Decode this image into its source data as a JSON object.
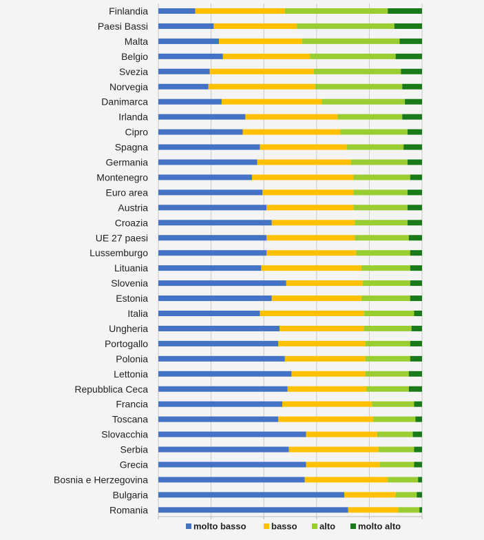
{
  "chart_data": {
    "type": "bar",
    "orientation": "horizontal",
    "stacked": true,
    "normalized": true,
    "categories": [
      "Finlandia",
      "Paesi Bassi",
      "Malta",
      "Belgio",
      "Svezia",
      "Norvegia",
      "Danimarca",
      "Irlanda",
      "Cipro",
      "Spagna",
      "Germania",
      "Montenegro",
      "Euro area",
      "Austria",
      "Croazia",
      "UE 27 paesi",
      "Lussemburgo",
      "Lituania",
      "Slovenia",
      "Estonia",
      "Italia",
      "Ungheria",
      "Portogallo",
      "Polonia",
      "Lettonia",
      "Repubblica Ceca",
      "Francia",
      "Toscana",
      "Slovacchia",
      "Serbia",
      "Grecia",
      "Bosnia e Herzegovina",
      "Bulgaria",
      "Romania"
    ],
    "series": [
      {
        "name": "molto basso",
        "color": "#4472c4",
        "values": [
          14,
          21,
          23,
          24.5,
          19.5,
          19,
          24,
          33,
          32,
          38.5,
          37.5,
          35.5,
          39.5,
          41,
          43,
          41,
          41,
          39,
          48.5,
          43,
          38.5,
          46,
          45.5,
          48,
          50.5,
          49,
          47,
          45.5,
          56,
          49.5,
          56,
          55.5,
          70.5,
          72
        ]
      },
      {
        "name": "basso",
        "color": "#ffc000",
        "values": [
          34,
          31.5,
          31.5,
          33,
          39.5,
          40.5,
          38,
          35,
          37,
          33,
          35.5,
          38.5,
          34.5,
          33,
          31.5,
          33.5,
          34,
          38,
          29,
          34,
          39.5,
          32,
          33,
          30.5,
          28,
          30,
          34,
          36,
          27,
          34,
          28,
          31.5,
          19.5,
          19
        ]
      },
      {
        "name": "alto",
        "color": "#9acd32",
        "values": [
          39,
          37,
          37,
          32.5,
          33,
          33,
          31.5,
          24.5,
          25.5,
          21.5,
          21.5,
          21.5,
          20.5,
          20.5,
          20,
          20.5,
          20.5,
          18.5,
          18,
          18.5,
          19,
          18,
          17,
          17,
          16.5,
          16,
          16,
          16,
          13.5,
          13.5,
          13,
          11.5,
          8,
          8
        ]
      },
      {
        "name": "molto alto",
        "color": "#1a7a1a",
        "values": [
          13,
          10.5,
          8.5,
          10,
          8,
          7.5,
          6.5,
          7.5,
          5.5,
          7,
          5.5,
          4.5,
          5.5,
          5.5,
          5.5,
          5,
          4.5,
          4.5,
          4.5,
          4.5,
          3,
          4,
          4.5,
          4.5,
          5,
          5,
          3,
          2.5,
          3.5,
          3,
          3,
          1.5,
          2,
          1
        ]
      }
    ],
    "xlim": [
      0,
      100
    ],
    "xticks_labeled": false,
    "grid": "vertical",
    "legend": "bottom",
    "title": "",
    "xlabel": "",
    "ylabel": ""
  }
}
